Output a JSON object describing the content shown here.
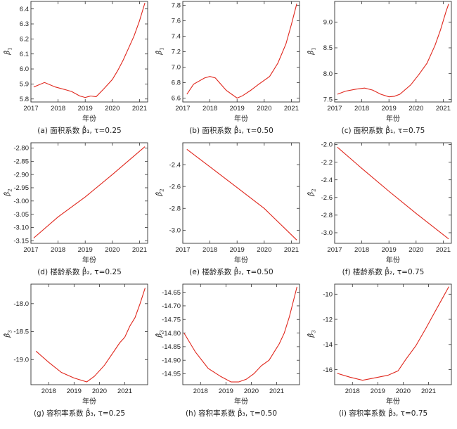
{
  "xlabel": "年份",
  "chart_data": [
    {
      "id": "a",
      "type": "line",
      "caption": "(a) 面积系数 β̂₁, τ=0.25",
      "ylabel": "β̂",
      "ysub": "1",
      "xlim": [
        2017,
        2021.3
      ],
      "ylim": [
        5.78,
        6.45
      ],
      "xticks": [
        2017,
        2018,
        2019,
        2020,
        2021
      ],
      "yticks": [
        5.8,
        5.9,
        6.0,
        6.1,
        6.2,
        6.3,
        6.4
      ],
      "ytick_labels": [
        "5.8",
        "5.9",
        "6.0",
        "6.1",
        "6.2",
        "6.3",
        "6.4"
      ],
      "x": [
        2017.1,
        2017.5,
        2017.9,
        2018.3,
        2018.5,
        2018.8,
        2019.0,
        2019.2,
        2019.4,
        2019.7,
        2020.0,
        2020.2,
        2020.4,
        2020.6,
        2020.8,
        2021.0,
        2021.2
      ],
      "y": [
        5.88,
        5.91,
        5.88,
        5.86,
        5.85,
        5.82,
        5.81,
        5.82,
        5.815,
        5.87,
        5.93,
        5.99,
        6.06,
        6.14,
        6.22,
        6.32,
        6.44
      ],
      "color": "#e0261c"
    },
    {
      "id": "b",
      "type": "line",
      "caption": "(b) 面积系数 β̂₁, τ=0.50",
      "ylabel": "β̂",
      "ysub": "1",
      "xlim": [
        2017,
        2021.3
      ],
      "ylim": [
        6.55,
        7.85
      ],
      "xticks": [
        2017,
        2018,
        2019,
        2020,
        2021
      ],
      "yticks": [
        6.6,
        6.8,
        7.0,
        7.2,
        7.4,
        7.6,
        7.8
      ],
      "ytick_labels": [
        "6.6",
        "6.8",
        "7.0",
        "7.2",
        "7.4",
        "7.6",
        "7.8"
      ],
      "x": [
        2017.15,
        2017.4,
        2017.8,
        2018.0,
        2018.2,
        2018.6,
        2019.0,
        2019.2,
        2019.5,
        2019.8,
        2020.2,
        2020.5,
        2020.8,
        2021.0,
        2021.2
      ],
      "y": [
        6.65,
        6.78,
        6.86,
        6.88,
        6.86,
        6.7,
        6.6,
        6.63,
        6.7,
        6.78,
        6.88,
        7.05,
        7.3,
        7.55,
        7.82
      ],
      "color": "#e0261c"
    },
    {
      "id": "c",
      "type": "line",
      "caption": "(c) 面积系数 β̂₁, τ=0.75",
      "ylabel": "β̂",
      "ysub": "1",
      "xlim": [
        2017,
        2021.3
      ],
      "ylim": [
        7.45,
        9.4
      ],
      "xticks": [
        2017,
        2018,
        2019,
        2020,
        2021
      ],
      "yticks": [
        7.5,
        8.0,
        8.5,
        9.0
      ],
      "ytick_labels": [
        "7.5",
        "8.0",
        "8.5",
        "9.0"
      ],
      "x": [
        2017.1,
        2017.4,
        2017.8,
        2018.1,
        2018.4,
        2018.7,
        2019.0,
        2019.2,
        2019.4,
        2019.8,
        2020.1,
        2020.4,
        2020.7,
        2020.9,
        2021.1,
        2021.2
      ],
      "y": [
        7.6,
        7.66,
        7.7,
        7.72,
        7.68,
        7.6,
        7.55,
        7.56,
        7.6,
        7.78,
        7.98,
        8.2,
        8.55,
        8.85,
        9.2,
        9.35
      ],
      "color": "#e0261c"
    },
    {
      "id": "d",
      "type": "line",
      "caption": "(d) 楼龄系数 β̂₂, τ=0.25",
      "ylabel": "β̂",
      "ysub": "2",
      "xlim": [
        2017,
        2021.3
      ],
      "ylim": [
        -3.16,
        -2.78
      ],
      "xticks": [
        2017,
        2018,
        2019,
        2020,
        2021
      ],
      "yticks": [
        -3.15,
        -3.1,
        -3.05,
        -3.0,
        -2.95,
        -2.9,
        -2.85,
        -2.8
      ],
      "ytick_labels": [
        "-3.15",
        "-3.10",
        "-3.05",
        "-3.00",
        "-2.95",
        "-2.90",
        "-2.85",
        "-2.80"
      ],
      "x": [
        2017.1,
        2018.0,
        2019.0,
        2020.0,
        2021.2
      ],
      "y": [
        -3.14,
        -3.06,
        -2.985,
        -2.9,
        -2.795
      ],
      "color": "#e0261c"
    },
    {
      "id": "e",
      "type": "line",
      "caption": "(e) 楼龄系数 β̂₂, τ=0.50",
      "ylabel": "β̂",
      "ysub": "2",
      "xlim": [
        2017,
        2021.3
      ],
      "ylim": [
        -3.12,
        -2.2
      ],
      "xticks": [
        2017,
        2018,
        2019,
        2020,
        2021
      ],
      "yticks": [
        -3.0,
        -2.8,
        -2.6,
        -2.4
      ],
      "ytick_labels": [
        "-3.0",
        "-2.8",
        "-2.6",
        "-2.4"
      ],
      "x": [
        2017.15,
        2018.0,
        2019.0,
        2020.0,
        2021.2
      ],
      "y": [
        -2.26,
        -2.42,
        -2.61,
        -2.8,
        -3.09
      ],
      "color": "#e0261c"
    },
    {
      "id": "f",
      "type": "line",
      "caption": "(f) 楼龄系数 β̂₂, τ=0.75",
      "ylabel": "β̂",
      "ysub": "2",
      "xlim": [
        2017,
        2021.3
      ],
      "ylim": [
        -3.12,
        -1.98
      ],
      "xticks": [
        2017,
        2018,
        2019,
        2020,
        2021
      ],
      "yticks": [
        -3.0,
        -2.8,
        -2.6,
        -2.4,
        -2.2,
        -2.0
      ],
      "ytick_labels": [
        "-3.0",
        "-2.8",
        "-2.6",
        "-2.4",
        "-2.2",
        "-2.0"
      ],
      "x": [
        2017.1,
        2018.0,
        2019.0,
        2020.0,
        2021.2
      ],
      "y": [
        -2.03,
        -2.27,
        -2.53,
        -2.78,
        -3.07
      ],
      "color": "#e0261c"
    },
    {
      "id": "g",
      "type": "line",
      "caption": "(g) 容积率系数 β̂₃, τ=0.25",
      "ylabel": "β̂",
      "ysub": "3",
      "xlim": [
        2017.3,
        2021.9
      ],
      "ylim": [
        -19.45,
        -17.65
      ],
      "xticks": [
        2018,
        2019,
        2020,
        2021
      ],
      "yticks": [
        -19.0,
        -18.5,
        -18.0
      ],
      "ytick_labels": [
        "-19.0",
        "-18.5",
        "-18.0"
      ],
      "x": [
        2017.5,
        2018.0,
        2018.5,
        2019.0,
        2019.5,
        2019.8,
        2020.2,
        2020.5,
        2020.8,
        2021.0,
        2021.2,
        2021.4,
        2021.6,
        2021.8
      ],
      "y": [
        -18.85,
        -19.05,
        -19.23,
        -19.33,
        -19.4,
        -19.3,
        -19.1,
        -18.9,
        -18.7,
        -18.6,
        -18.4,
        -18.25,
        -18.0,
        -17.72
      ],
      "color": "#e0261c"
    },
    {
      "id": "h",
      "type": "line",
      "caption": "(h) 容积率系数 β̂₃, τ=0.50",
      "ylabel": "β̂",
      "ysub": "3",
      "xlim": [
        2017.3,
        2021.9
      ],
      "ylim": [
        -14.99,
        -14.62
      ],
      "xticks": [
        2018,
        2019,
        2020,
        2021
      ],
      "yticks": [
        -14.95,
        -14.9,
        -14.85,
        -14.8,
        -14.75,
        -14.7,
        -14.65
      ],
      "ytick_labels": [
        "-14.95",
        "-14.90",
        "-14.85",
        "-14.80",
        "-14.75",
        "-14.70",
        "-14.65"
      ],
      "x": [
        2017.35,
        2017.8,
        2018.3,
        2018.8,
        2019.2,
        2019.5,
        2019.8,
        2020.1,
        2020.4,
        2020.7,
        2020.9,
        2021.1,
        2021.3,
        2021.5,
        2021.8
      ],
      "y": [
        -14.8,
        -14.87,
        -14.93,
        -14.96,
        -14.98,
        -14.98,
        -14.97,
        -14.95,
        -14.92,
        -14.9,
        -14.87,
        -14.84,
        -14.8,
        -14.74,
        -14.63
      ],
      "color": "#e0261c"
    },
    {
      "id": "i",
      "type": "line",
      "caption": "(i) 容积率系数 β̂₃, τ=0.75",
      "ylabel": "β̂",
      "ysub": "3",
      "xlim": [
        2017.3,
        2021.9
      ],
      "ylim": [
        -17.2,
        -9.2
      ],
      "xticks": [
        2018,
        2019,
        2020,
        2021
      ],
      "yticks": [
        -16,
        -14,
        -12,
        -10
      ],
      "ytick_labels": [
        "-16",
        "-14",
        "-12",
        "-10"
      ],
      "x": [
        2017.4,
        2017.9,
        2018.4,
        2018.9,
        2019.4,
        2019.8,
        2020.1,
        2020.5,
        2020.9,
        2021.2,
        2021.5,
        2021.8
      ],
      "y": [
        -16.3,
        -16.6,
        -16.85,
        -16.65,
        -16.45,
        -16.1,
        -15.2,
        -14.1,
        -12.7,
        -11.6,
        -10.5,
        -9.4
      ],
      "color": "#e0261c"
    }
  ]
}
